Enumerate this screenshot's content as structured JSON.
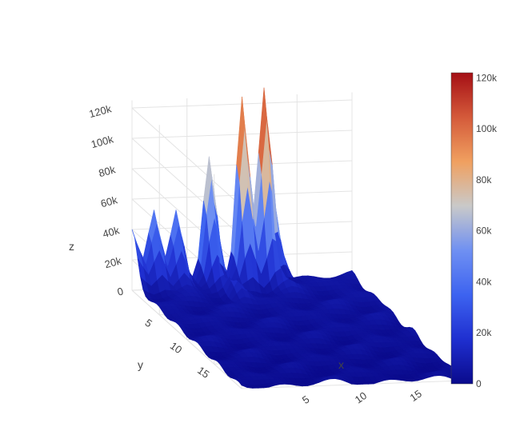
{
  "chart_data": {
    "type": "surface",
    "title": "",
    "axes": {
      "x": {
        "title": "x",
        "ticks": [
          "5",
          "10",
          "15"
        ],
        "range": [
          0,
          20
        ]
      },
      "y": {
        "title": "y",
        "ticks": [
          "5",
          "10",
          "15"
        ],
        "range": [
          0,
          20
        ]
      },
      "z": {
        "title": "z",
        "ticks": [
          "0",
          "20k",
          "40k",
          "60k",
          "80k",
          "100k",
          "120k"
        ],
        "range": [
          0,
          120000
        ]
      }
    },
    "grid": true,
    "colorscale": [
      "#0a0a8c",
      "#1f2fd0",
      "#3d63f0",
      "#6f90f2",
      "#c9c9c9",
      "#f0a060",
      "#d45a3a",
      "#a50f15"
    ],
    "colorbar": {
      "ticks": [
        "0",
        "20k",
        "40k",
        "60k",
        "80k",
        "100k",
        "120k"
      ],
      "range": [
        0,
        122000
      ],
      "placement": "right"
    },
    "peaks": [
      {
        "x": 0,
        "y": 0,
        "z": 35000
      },
      {
        "x": 2,
        "y": 0,
        "z": 45000
      },
      {
        "x": 4,
        "y": 0,
        "z": 48000
      },
      {
        "x": 7,
        "y": 0,
        "z": 82000
      },
      {
        "x": 10,
        "y": 0,
        "z": 118000
      },
      {
        "x": 12,
        "y": 0,
        "z": 122000
      },
      {
        "x": 13,
        "y": 1,
        "z": 20000
      },
      {
        "x": 8,
        "y": 3,
        "z": 15000
      }
    ],
    "baseline": 5000
  }
}
